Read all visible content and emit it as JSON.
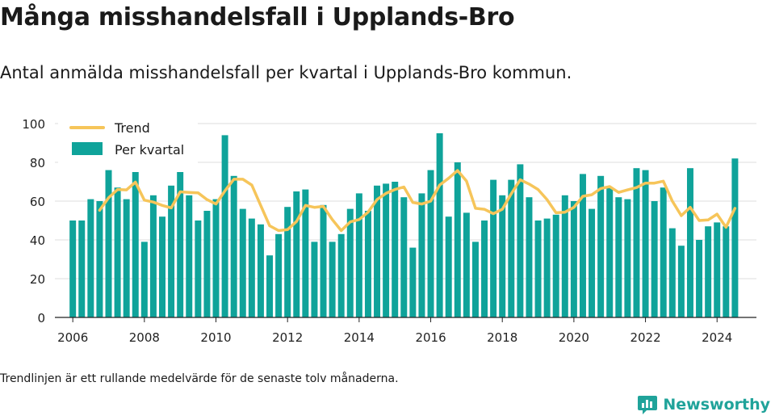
{
  "title": "Många misshandelsfall i Upplands-Bro",
  "subtitle": "Antal anmälda misshandelsfall per kvartal i Upplands-Bro kommun.",
  "footnote": "Trendlinjen är ett rullande medelvärde för de senaste tolv månaderna.",
  "brand": "Newsworthy",
  "colors": {
    "bar": "#0fa39a",
    "trend": "#f6c55a",
    "grid": "#dddddd",
    "brand": "#20a39a"
  },
  "chart_data": {
    "type": "bar",
    "ylim": [
      0,
      100
    ],
    "yticks": [
      0,
      20,
      40,
      60,
      80,
      100
    ],
    "xticks": [
      2006,
      2008,
      2010,
      2012,
      2014,
      2016,
      2018,
      2020,
      2022,
      2024
    ],
    "xlim": [
      2005.5,
      2025.1
    ],
    "grid": true,
    "legend": "top-left",
    "series": [
      {
        "name": "Per kvartal",
        "type": "bar",
        "start_year": 2006,
        "values": [
          50,
          50,
          61,
          60,
          76,
          67,
          61,
          75,
          39,
          63,
          52,
          68,
          75,
          63,
          50,
          55,
          61,
          94,
          73,
          56,
          51,
          48,
          32,
          43,
          57,
          65,
          66,
          39,
          58,
          39,
          43,
          56,
          64,
          55,
          68,
          69,
          70,
          62,
          36,
          64,
          76,
          95,
          52,
          80,
          54,
          39,
          50,
          71,
          63,
          71,
          79,
          62,
          50,
          51,
          53,
          63,
          60,
          74,
          56,
          73,
          67,
          62,
          61,
          77,
          76,
          60,
          67,
          46,
          37,
          77,
          40,
          47,
          49,
          47,
          82
        ]
      },
      {
        "name": "Trend",
        "type": "line",
        "start_year": 2006.75,
        "values": [
          55.3,
          61.7,
          66,
          65.8,
          69.8,
          60.5,
          59.5,
          57.8,
          56.5,
          64.8,
          64.5,
          64.3,
          60.8,
          58.5,
          65.3,
          71.3,
          71.3,
          68.3,
          57.8,
          47.3,
          44.8,
          45.3,
          49.5,
          57.8,
          56.8,
          57.3,
          50.5,
          44.8,
          49.3,
          50.5,
          54.3,
          60.8,
          64.0,
          66.0,
          67.3,
          59.3,
          58.5,
          60.0,
          68.3,
          71.8,
          75.8,
          70.3,
          56.3,
          55.8,
          53.5,
          55.8,
          63.8,
          71.0,
          68.8,
          66.0,
          60.8,
          54.0,
          54.3,
          56.8,
          62.5,
          63.3,
          66.5,
          67.5,
          64.5,
          65.8,
          67.0,
          69.3,
          69.3,
          70.3,
          60.0,
          52.5,
          56.8,
          50.0,
          50.3,
          53.3,
          46.5,
          56.3
        ]
      }
    ]
  }
}
